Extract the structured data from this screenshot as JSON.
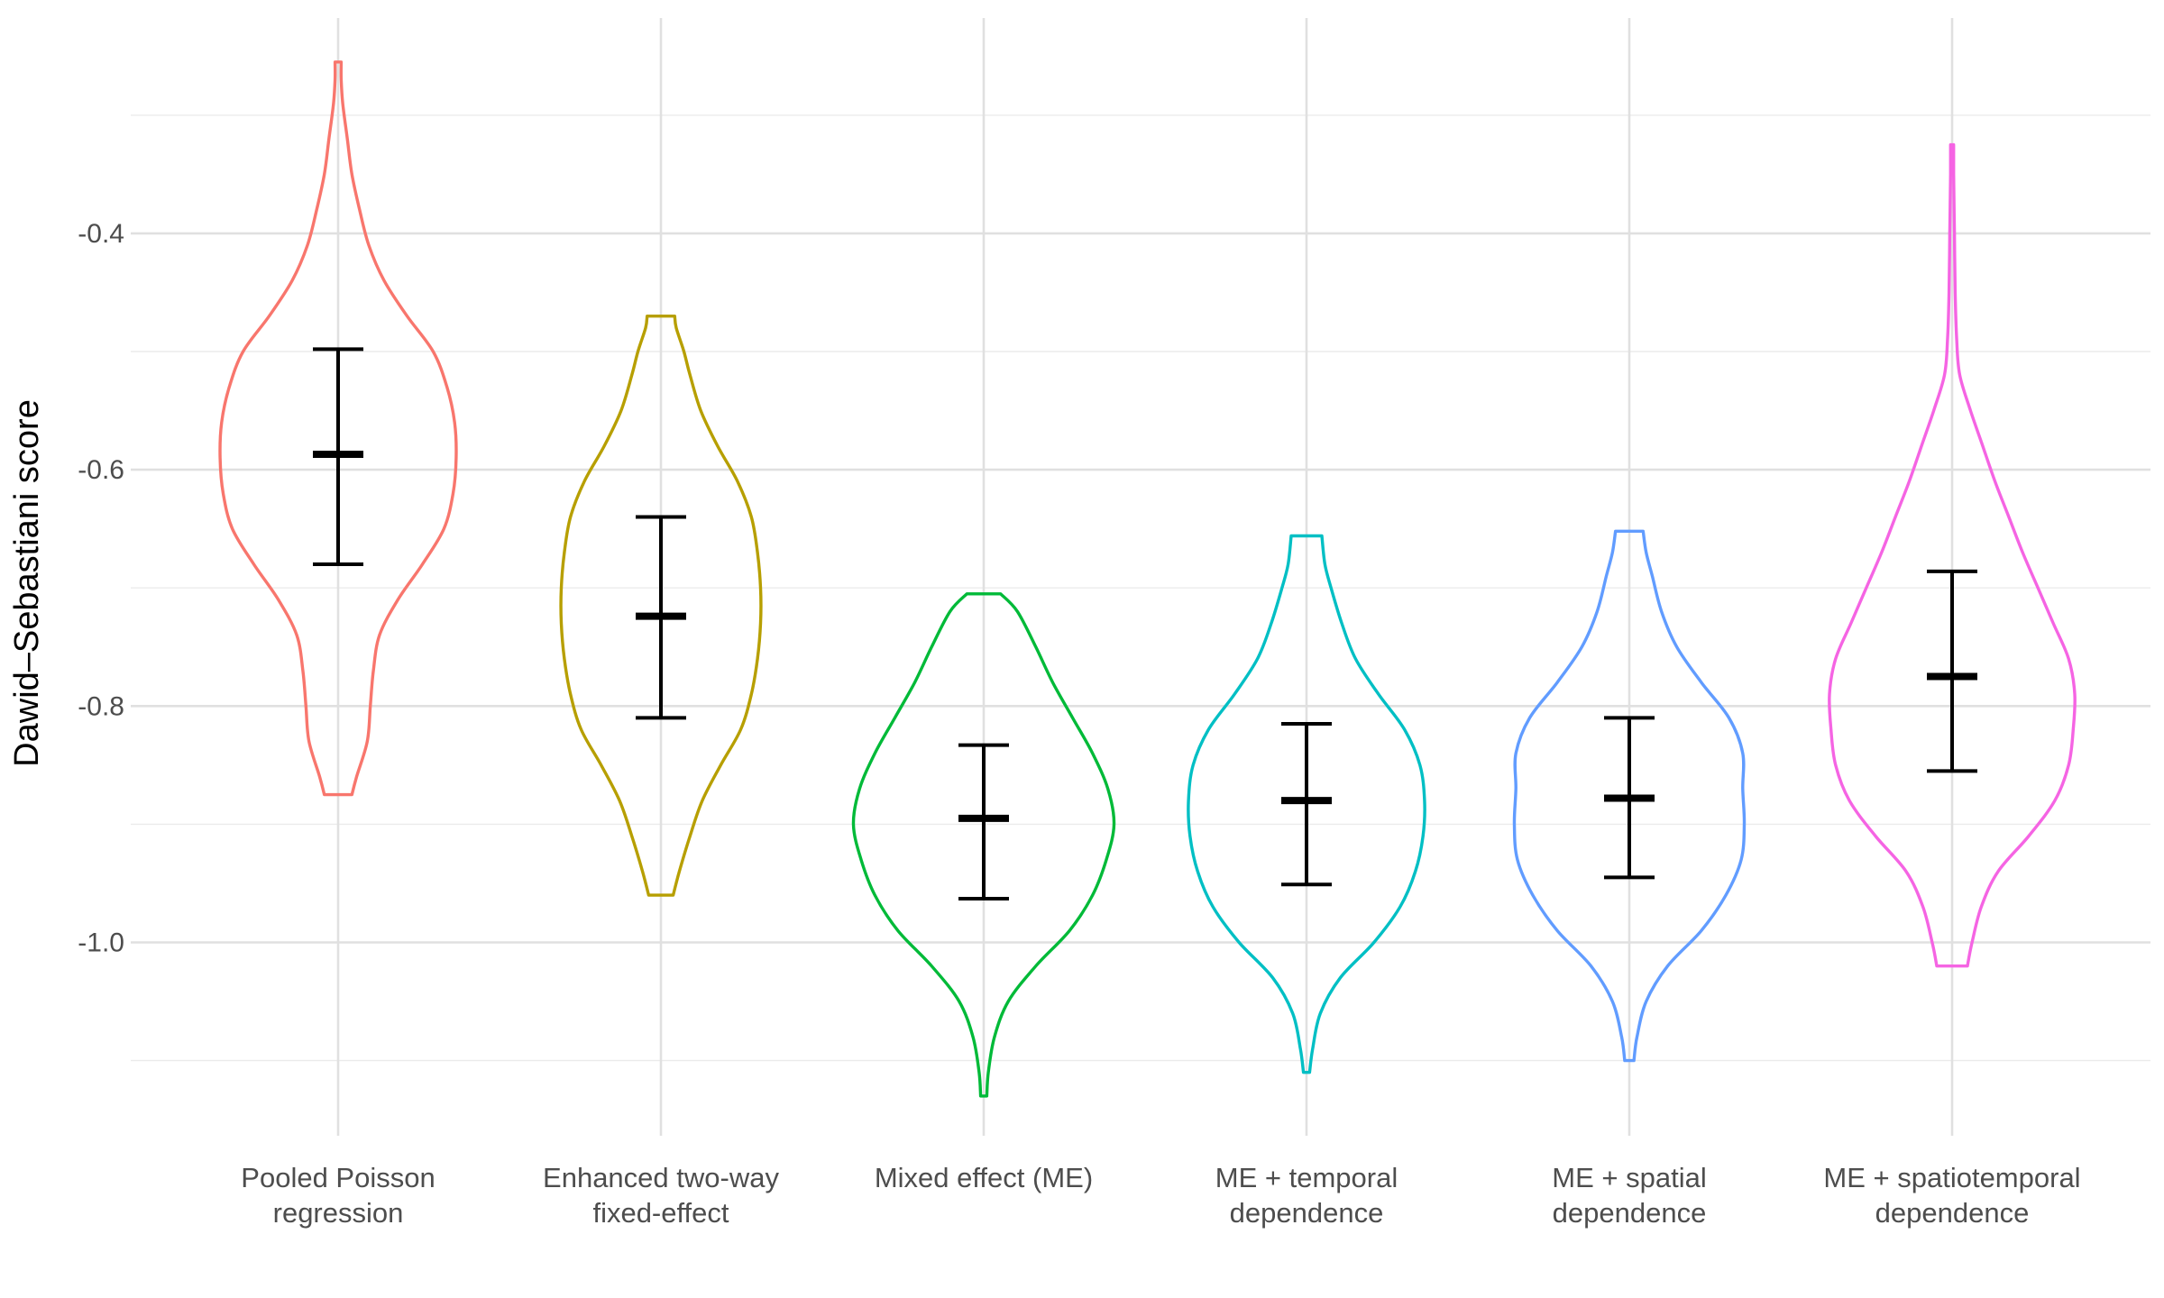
{
  "chart_data": {
    "type": "violin",
    "title": "",
    "xlabel": "",
    "ylabel": "Dawid–Sebastiani score",
    "ylim": [
      -1.16,
      -0.2
    ],
    "yticks": [
      -1.0,
      -0.8,
      -0.6,
      -0.4
    ],
    "ytick_labels": [
      "-1.0",
      "-0.8",
      "-0.6",
      "-0.4"
    ],
    "grid": true,
    "legend": "none",
    "categories": [
      [
        "Pooled Poisson",
        "regression"
      ],
      [
        "Enhanced two-way",
        "fixed-effect"
      ],
      [
        "Mixed effect (ME)"
      ],
      [
        "ME + temporal",
        "dependence"
      ],
      [
        "ME + spatial",
        "dependence"
      ],
      [
        "ME + spatiotemporal",
        "dependence"
      ]
    ],
    "series": [
      {
        "color": "#F8766D",
        "min": -0.875,
        "max": -0.255,
        "mean": -0.587,
        "lower": -0.68,
        "upper": -0.498,
        "profile": [
          [
            -0.875,
            0.09
          ],
          [
            -0.86,
            0.12
          ],
          [
            -0.83,
            0.19
          ],
          [
            -0.8,
            0.21
          ],
          [
            -0.77,
            0.23
          ],
          [
            -0.74,
            0.27
          ],
          [
            -0.71,
            0.39
          ],
          [
            -0.68,
            0.55
          ],
          [
            -0.65,
            0.69
          ],
          [
            -0.62,
            0.75
          ],
          [
            -0.59,
            0.77
          ],
          [
            -0.56,
            0.76
          ],
          [
            -0.53,
            0.71
          ],
          [
            -0.5,
            0.62
          ],
          [
            -0.47,
            0.45
          ],
          [
            -0.44,
            0.3
          ],
          [
            -0.41,
            0.2
          ],
          [
            -0.38,
            0.14
          ],
          [
            -0.35,
            0.09
          ],
          [
            -0.32,
            0.06
          ],
          [
            -0.29,
            0.03
          ],
          [
            -0.27,
            0.02
          ],
          [
            -0.255,
            0.02
          ]
        ]
      },
      {
        "color": "#B79F00",
        "min": -0.96,
        "max": -0.47,
        "mean": -0.724,
        "lower": -0.81,
        "upper": -0.64,
        "profile": [
          [
            -0.96,
            0.08
          ],
          [
            -0.94,
            0.12
          ],
          [
            -0.91,
            0.19
          ],
          [
            -0.88,
            0.27
          ],
          [
            -0.85,
            0.39
          ],
          [
            -0.82,
            0.52
          ],
          [
            -0.79,
            0.59
          ],
          [
            -0.76,
            0.63
          ],
          [
            -0.73,
            0.65
          ],
          [
            -0.7,
            0.65
          ],
          [
            -0.67,
            0.63
          ],
          [
            -0.64,
            0.59
          ],
          [
            -0.61,
            0.5
          ],
          [
            -0.58,
            0.37
          ],
          [
            -0.55,
            0.26
          ],
          [
            -0.52,
            0.19
          ],
          [
            -0.5,
            0.15
          ],
          [
            -0.48,
            0.1
          ],
          [
            -0.47,
            0.09
          ]
        ]
      },
      {
        "color": "#00BA38",
        "min": -1.13,
        "max": -0.705,
        "mean": -0.895,
        "lower": -0.963,
        "upper": -0.833,
        "profile": [
          [
            -1.13,
            0.02
          ],
          [
            -1.11,
            0.03
          ],
          [
            -1.08,
            0.07
          ],
          [
            -1.05,
            0.16
          ],
          [
            -1.02,
            0.34
          ],
          [
            -0.99,
            0.56
          ],
          [
            -0.96,
            0.71
          ],
          [
            -0.93,
            0.8
          ],
          [
            -0.9,
            0.85
          ],
          [
            -0.87,
            0.81
          ],
          [
            -0.84,
            0.71
          ],
          [
            -0.81,
            0.58
          ],
          [
            -0.78,
            0.45
          ],
          [
            -0.75,
            0.34
          ],
          [
            -0.72,
            0.22
          ],
          [
            -0.705,
            0.11
          ]
        ]
      },
      {
        "color": "#00BFC4",
        "min": -1.11,
        "max": -0.656,
        "mean": -0.88,
        "lower": -0.951,
        "upper": -0.815,
        "profile": [
          [
            -1.11,
            0.02
          ],
          [
            -1.09,
            0.04
          ],
          [
            -1.06,
            0.09
          ],
          [
            -1.03,
            0.22
          ],
          [
            -1.0,
            0.44
          ],
          [
            -0.97,
            0.61
          ],
          [
            -0.94,
            0.71
          ],
          [
            -0.91,
            0.76
          ],
          [
            -0.88,
            0.77
          ],
          [
            -0.85,
            0.74
          ],
          [
            -0.82,
            0.64
          ],
          [
            -0.79,
            0.47
          ],
          [
            -0.76,
            0.32
          ],
          [
            -0.73,
            0.23
          ],
          [
            -0.7,
            0.16
          ],
          [
            -0.68,
            0.12
          ],
          [
            -0.656,
            0.1
          ]
        ]
      },
      {
        "color": "#619CFF",
        "min": -1.1,
        "max": -0.652,
        "mean": -0.878,
        "lower": -0.945,
        "upper": -0.81,
        "profile": [
          [
            -1.1,
            0.03
          ],
          [
            -1.08,
            0.05
          ],
          [
            -1.05,
            0.11
          ],
          [
            -1.02,
            0.25
          ],
          [
            -0.99,
            0.47
          ],
          [
            -0.96,
            0.63
          ],
          [
            -0.93,
            0.73
          ],
          [
            -0.9,
            0.75
          ],
          [
            -0.87,
            0.74
          ],
          [
            -0.84,
            0.74
          ],
          [
            -0.81,
            0.65
          ],
          [
            -0.78,
            0.47
          ],
          [
            -0.75,
            0.31
          ],
          [
            -0.72,
            0.21
          ],
          [
            -0.69,
            0.15
          ],
          [
            -0.67,
            0.11
          ],
          [
            -0.652,
            0.09
          ]
        ]
      },
      {
        "color": "#F564E3",
        "min": -1.02,
        "max": -0.325,
        "mean": -0.775,
        "lower": -0.855,
        "upper": -0.686,
        "profile": [
          [
            -1.02,
            0.1
          ],
          [
            -1.0,
            0.13
          ],
          [
            -0.97,
            0.19
          ],
          [
            -0.94,
            0.3
          ],
          [
            -0.91,
            0.5
          ],
          [
            -0.88,
            0.67
          ],
          [
            -0.85,
            0.76
          ],
          [
            -0.82,
            0.79
          ],
          [
            -0.79,
            0.8
          ],
          [
            -0.76,
            0.76
          ],
          [
            -0.73,
            0.66
          ],
          [
            -0.7,
            0.56
          ],
          [
            -0.67,
            0.46
          ],
          [
            -0.64,
            0.37
          ],
          [
            -0.61,
            0.28
          ],
          [
            -0.58,
            0.2
          ],
          [
            -0.55,
            0.12
          ],
          [
            -0.52,
            0.05
          ],
          [
            -0.49,
            0.03
          ],
          [
            -0.45,
            0.02
          ],
          [
            -0.4,
            0.015
          ],
          [
            -0.35,
            0.01
          ],
          [
            -0.325,
            0.01
          ]
        ]
      }
    ]
  }
}
